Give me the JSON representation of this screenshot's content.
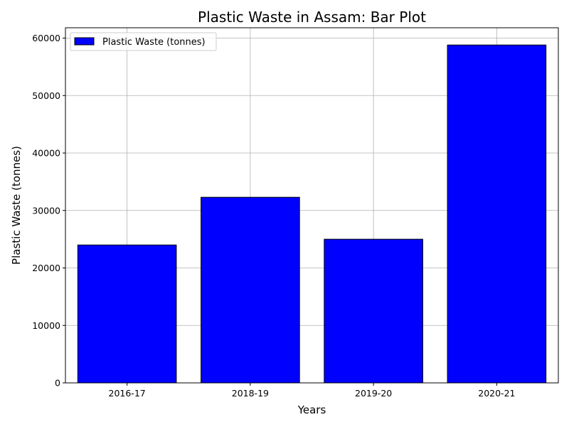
{
  "chart_data": {
    "type": "bar",
    "title": "Plastic Waste in Assam: Bar Plot",
    "xlabel": "Years",
    "ylabel": "Plastic Waste (tonnes)",
    "categories": [
      "2016-17",
      "2018-19",
      "2019-20",
      "2020-21"
    ],
    "series": [
      {
        "name": "Plastic Waste (tonnes)",
        "values": [
          24000,
          32300,
          25000,
          58800
        ],
        "color": "#0000ff",
        "edgecolor": "#000000"
      }
    ],
    "ylim": [
      0,
      61800
    ],
    "yticks": [
      0,
      10000,
      20000,
      30000,
      40000,
      50000,
      60000
    ],
    "ytick_labels": [
      "0",
      "10000",
      "20000",
      "30000",
      "40000",
      "50000",
      "60000"
    ],
    "grid": true,
    "legend": "top-left"
  }
}
